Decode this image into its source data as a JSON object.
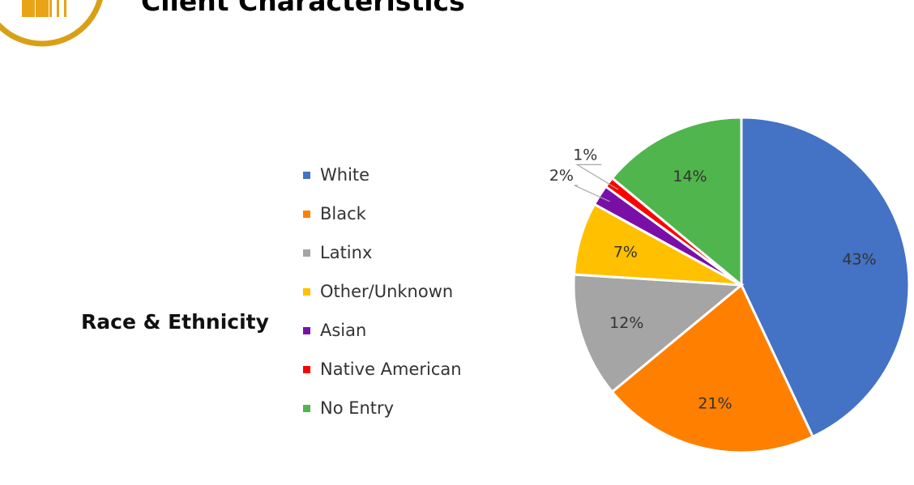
{
  "header": {
    "title": "Client Characteristics",
    "logo_icon": "staircase-logo-icon"
  },
  "section": {
    "label": "Race & Ethnicity"
  },
  "chart_data": {
    "type": "pie",
    "categories": [
      "White",
      "Black",
      "Latinx",
      "Other/Unknown",
      "Asian",
      "Native American",
      "No Entry"
    ],
    "values": [
      43,
      21,
      12,
      7,
      2,
      1,
      14
    ],
    "labels": [
      "43%",
      "21%",
      "12%",
      "7%",
      "2%",
      "1%",
      "14%"
    ],
    "colors": [
      "#4472C4",
      "#FF7F00",
      "#A5A5A5",
      "#FFC000",
      "#7A0FA8",
      "#FF0000",
      "#4FB54C"
    ],
    "legend_position": "left"
  }
}
